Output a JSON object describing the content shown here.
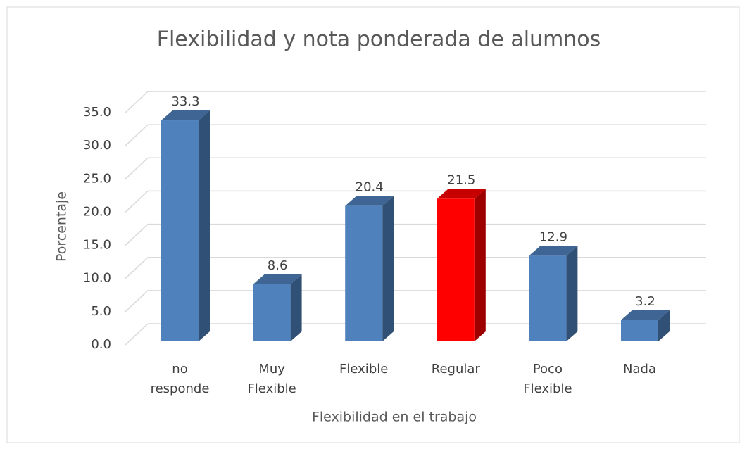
{
  "chart_data": {
    "type": "bar3d",
    "title": "Flexibilidad y nota ponderada de alumnos",
    "x_label": "Flexibilidad en el trabajo",
    "y_label": "Porcentaje",
    "categories": [
      "no responde",
      "Muy Flexible",
      "Flexible",
      "Regular",
      "Poco Flexible",
      "Nada"
    ],
    "values": [
      33.3,
      8.6,
      20.4,
      21.5,
      12.9,
      3.2
    ],
    "colors": [
      "#4f81bd",
      "#4f81bd",
      "#4f81bd",
      "#ff0000",
      "#4f81bd",
      "#4f81bd"
    ],
    "ylim": [
      0,
      35
    ],
    "yticks": [
      {
        "value": 0,
        "label": "0.0"
      },
      {
        "value": 5,
        "label": "5.0"
      },
      {
        "value": 10,
        "label": "10.0"
      },
      {
        "value": 15,
        "label": "15.0"
      },
      {
        "value": 20,
        "label": "20.0"
      },
      {
        "value": 25,
        "label": "25.0"
      },
      {
        "value": 30,
        "label": "30.0"
      },
      {
        "value": 35,
        "label": "35.0"
      }
    ],
    "grid": true
  }
}
